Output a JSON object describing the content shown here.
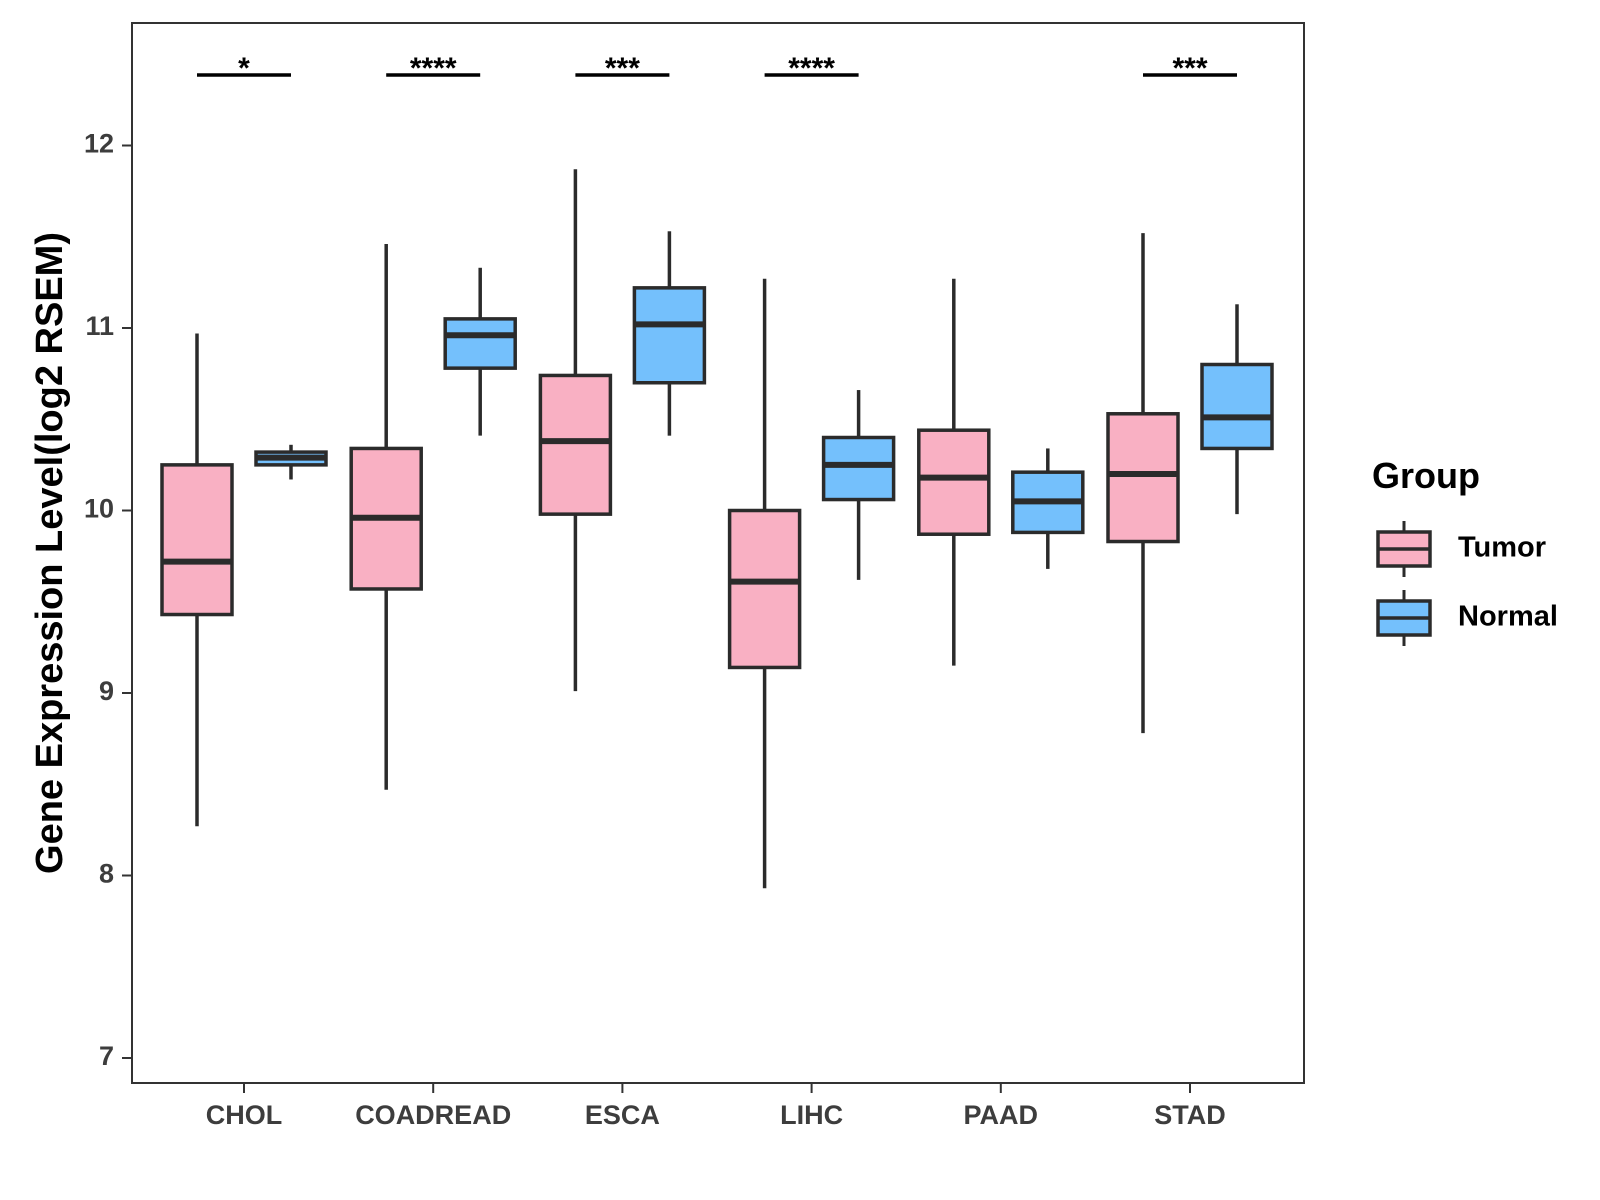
{
  "chart_data": {
    "type": "boxplot",
    "title": "",
    "xlabel": "",
    "ylabel": "Gene Expression Level(log2 RSEM)",
    "ylim": [
      6.88,
      12.7
    ],
    "yticks": [
      7,
      8,
      9,
      10,
      11,
      12
    ],
    "ytick_labels": [
      "7",
      "8",
      "9",
      "10",
      "11",
      "12"
    ],
    "categories": [
      "CHOL",
      "COADREAD",
      "ESCA",
      "LIHC",
      "PAAD",
      "STAD"
    ],
    "legend": {
      "title": "Group",
      "position": "right"
    },
    "series": [
      {
        "name": "Tumor",
        "color": "#F9B0C3",
        "boxes": [
          {
            "whisker_low": 8.27,
            "q1": 9.43,
            "median": 9.72,
            "q3": 10.25,
            "whisker_high": 10.97
          },
          {
            "whisker_low": 8.47,
            "q1": 9.57,
            "median": 9.96,
            "q3": 10.34,
            "whisker_high": 11.46
          },
          {
            "whisker_low": 9.01,
            "q1": 9.98,
            "median": 10.38,
            "q3": 10.74,
            "whisker_high": 11.87
          },
          {
            "whisker_low": 7.93,
            "q1": 9.14,
            "median": 9.61,
            "q3": 10.0,
            "whisker_high": 11.27
          },
          {
            "whisker_low": 9.15,
            "q1": 9.87,
            "median": 10.18,
            "q3": 10.44,
            "whisker_high": 11.27
          },
          {
            "whisker_low": 8.78,
            "q1": 9.83,
            "median": 10.2,
            "q3": 10.53,
            "whisker_high": 11.52
          }
        ]
      },
      {
        "name": "Normal",
        "color": "#74C0FC",
        "boxes": [
          {
            "whisker_low": 10.17,
            "q1": 10.25,
            "median": 10.29,
            "q3": 10.32,
            "whisker_high": 10.36
          },
          {
            "whisker_low": 10.41,
            "q1": 10.78,
            "median": 10.96,
            "q3": 11.05,
            "whisker_high": 11.33
          },
          {
            "whisker_low": 10.41,
            "q1": 10.7,
            "median": 11.02,
            "q3": 11.22,
            "whisker_high": 11.53
          },
          {
            "whisker_low": 9.62,
            "q1": 10.06,
            "median": 10.25,
            "q3": 10.4,
            "whisker_high": 10.66
          },
          {
            "whisker_low": 9.68,
            "q1": 9.88,
            "median": 10.05,
            "q3": 10.21,
            "whisker_high": 10.34
          },
          {
            "whisker_low": 9.98,
            "q1": 10.34,
            "median": 10.51,
            "q3": 10.8,
            "whisker_high": 11.13
          }
        ]
      }
    ],
    "significance": [
      {
        "category": "CHOL",
        "label": "*"
      },
      {
        "category": "COADREAD",
        "label": "****"
      },
      {
        "category": "ESCA",
        "label": "***"
      },
      {
        "category": "LIHC",
        "label": "****"
      },
      {
        "category": "STAD",
        "label": "***"
      }
    ]
  }
}
